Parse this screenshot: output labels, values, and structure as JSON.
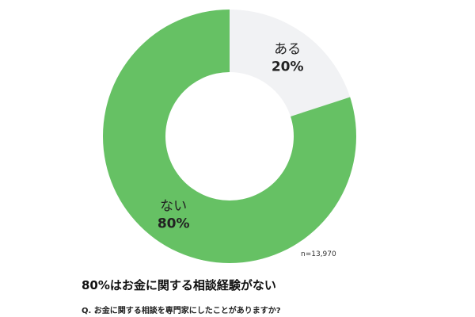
{
  "chart_data": {
    "type": "pie",
    "slices": [
      {
        "label": "ある",
        "value": 20,
        "value_label": "20%",
        "color": "#f1f2f4"
      },
      {
        "label": "ない",
        "value": 80,
        "value_label": "80%",
        "color": "#66c164"
      }
    ],
    "donut": true
  },
  "sample_note": "n=13,970",
  "headline": "80%はお金に関する相談経験がない",
  "question": "Q. お金に関する相談を専門家にしたことがありますか?"
}
